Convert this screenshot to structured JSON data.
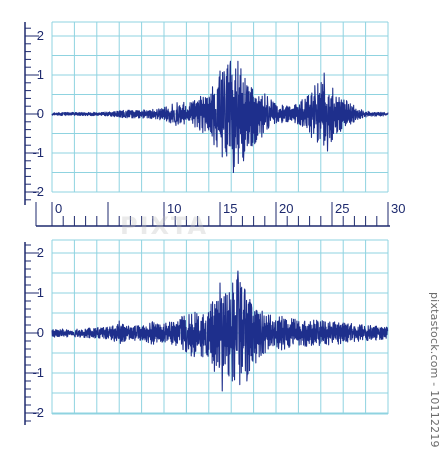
{
  "watermark": {
    "side_text": "pixtastock.com - 10112219",
    "center_text": "PIXTA"
  },
  "colors": {
    "grid": "#8fd3e0",
    "axis": "#1e2a6e",
    "wave": "#1e2f8c",
    "background": "#ffffff"
  },
  "chart_data": [
    {
      "type": "line",
      "title": "",
      "xlabel": "",
      "ylabel": "",
      "grid": true,
      "xlim": [
        0,
        30
      ],
      "ylim": [
        -2.2,
        2.2
      ],
      "yticks": [
        "2",
        "1",
        "0",
        "-1",
        "-2"
      ],
      "xticks": [
        "0",
        "10",
        "15",
        "20",
        "25",
        "30"
      ],
      "series": [
        {
          "envelope": [
            [
              0,
              0.04
            ],
            [
              5,
              0.05
            ],
            [
              6.5,
              0.1
            ],
            [
              9,
              0.12
            ],
            [
              10,
              0.18
            ],
            [
              11,
              0.3
            ],
            [
              12.5,
              0.3
            ],
            [
              14,
              0.6
            ],
            [
              15,
              1.05
            ],
            [
              16,
              1.4
            ],
            [
              16.6,
              1.3
            ],
            [
              17.5,
              0.9
            ],
            [
              18.5,
              0.7
            ],
            [
              20,
              0.25
            ],
            [
              21.5,
              0.2
            ],
            [
              22.5,
              0.4
            ],
            [
              23.5,
              0.8
            ],
            [
              24.5,
              0.85
            ],
            [
              25.5,
              0.55
            ],
            [
              26.5,
              0.3
            ],
            [
              27.5,
              0.12
            ],
            [
              28.5,
              0.06
            ],
            [
              30,
              0.05
            ]
          ],
          "peaks": [
            [
              15,
              1.1
            ],
            [
              15.2,
              -1.1
            ],
            [
              15.8,
              0.8
            ],
            [
              16.2,
              -1.5
            ],
            [
              16.6,
              1.35
            ],
            [
              17.1,
              -1.2
            ],
            [
              24.3,
              1.05
            ],
            [
              24.6,
              -0.95
            ]
          ]
        }
      ]
    },
    {
      "type": "line",
      "title": "",
      "xlabel": "",
      "ylabel": "",
      "grid": true,
      "xlim": [
        0,
        30
      ],
      "ylim": [
        -2.2,
        2.2
      ],
      "yticks": [
        "2",
        "1",
        "0",
        "-1",
        "-2"
      ],
      "series": [
        {
          "envelope": [
            [
              0,
              0.1
            ],
            [
              3,
              0.12
            ],
            [
              5,
              0.15
            ],
            [
              6,
              0.3
            ],
            [
              6.5,
              0.2
            ],
            [
              8,
              0.18
            ],
            [
              9,
              0.3
            ],
            [
              10,
              0.25
            ],
            [
              11,
              0.3
            ],
            [
              12,
              0.5
            ],
            [
              12.8,
              0.65
            ],
            [
              13.2,
              0.6
            ],
            [
              14,
              0.6
            ],
            [
              15,
              1.35
            ],
            [
              15.5,
              1.1
            ],
            [
              16,
              1.25
            ],
            [
              16.6,
              1.55
            ],
            [
              17.2,
              1.2
            ],
            [
              18,
              0.8
            ],
            [
              19,
              0.55
            ],
            [
              20,
              0.45
            ],
            [
              22,
              0.35
            ],
            [
              25,
              0.3
            ],
            [
              28,
              0.2
            ],
            [
              30,
              0.15
            ]
          ],
          "peaks": [
            [
              15,
              1.25
            ],
            [
              15.2,
              -1.45
            ],
            [
              16.1,
              -1.2
            ],
            [
              16.6,
              1.55
            ],
            [
              16.9,
              -1.0
            ],
            [
              17.2,
              1.1
            ],
            [
              17.4,
              -1.2
            ]
          ]
        }
      ]
    }
  ]
}
